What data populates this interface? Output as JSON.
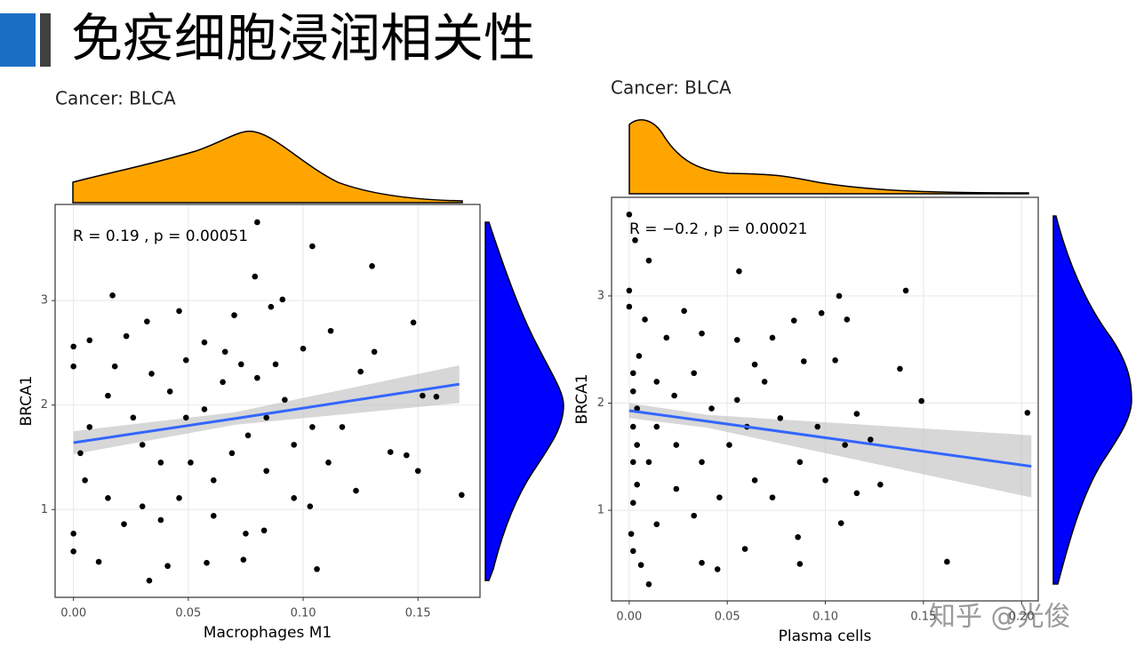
{
  "header": {
    "title": "免疫细胞浸润相关性"
  },
  "watermark": "知乎 @光俊",
  "chart_data": [
    {
      "type": "scatter",
      "title": "Cancer: BLCA",
      "annotation": "R = 0.19 , p = 0.00051",
      "x_label": "Macrophages M1",
      "y_label": "BRCA1",
      "color": "#000000",
      "xlim": [
        -0.008,
        0.177
      ],
      "ylim": [
        0.16,
        3.92
      ],
      "xticks": [
        {
          "value": 0,
          "label": "0.00"
        },
        0.05,
        {
          "value": 0.1,
          "label": "0.10"
        },
        0.15
      ],
      "yticks": [
        1,
        2,
        3
      ],
      "grid": true,
      "x": [
        0.08,
        0.104,
        0.13,
        0.079,
        0.017,
        0.091,
        0.148,
        0.169,
        0.15,
        0.106,
        0.033,
        0,
        0,
        0,
        0,
        0.007,
        0.011,
        0.041,
        0.058,
        0.074,
        0.083,
        0.103,
        0.123,
        0.138,
        0.145,
        0.158,
        0.152,
        0.125,
        0.131,
        0.112,
        0.1,
        0.086,
        0.07,
        0.057,
        0.046,
        0.032,
        0.023,
        0.018,
        0.015,
        0.007,
        0.003,
        0.005,
        0.015,
        0.022,
        0.03,
        0.038,
        0.046,
        0.051,
        0.061,
        0.069,
        0.076,
        0.084,
        0.092,
        0.096,
        0.104,
        0.111,
        0.117,
        0.065,
        0.073,
        0.057,
        0.049,
        0.042,
        0.034,
        0.026,
        0.03,
        0.038,
        0.061,
        0.075,
        0.096,
        0.084,
        0.049,
        0.08,
        0.088,
        0.066
      ],
      "values": [
        3.75,
        3.52,
        3.33,
        3.23,
        3.05,
        3.01,
        2.79,
        1.14,
        1.37,
        0.43,
        0.32,
        0.77,
        0.6,
        2.56,
        2.37,
        2.62,
        0.5,
        0.46,
        0.49,
        0.52,
        0.8,
        1.03,
        1.18,
        1.55,
        1.52,
        2.08,
        2.09,
        2.32,
        2.51,
        2.71,
        2.54,
        2.94,
        2.86,
        2.6,
        2.9,
        2.8,
        2.66,
        2.37,
        2.09,
        1.79,
        1.54,
        1.28,
        1.11,
        0.86,
        1.03,
        0.9,
        1.11,
        1.45,
        1.28,
        1.54,
        1.71,
        1.88,
        2.05,
        1.62,
        1.79,
        1.45,
        1.79,
        2.22,
        2.39,
        1.96,
        1.88,
        2.13,
        2.3,
        1.88,
        1.62,
        1.45,
        0.94,
        0.77,
        1.11,
        1.37,
        2.43,
        2.26,
        2.39,
        2.51
      ],
      "fit": {
        "color": "#3366ff",
        "band_color": "#bdbdbd",
        "x": [
          0,
          0.07,
          0.168
        ],
        "values": [
          1.64,
          1.87,
          2.2
        ],
        "lower": [
          1.53,
          1.81,
          2.02
        ],
        "upper": [
          1.75,
          1.93,
          2.38
        ]
      }
    },
    {
      "type": "scatter",
      "title": "Cancer: BLCA",
      "annotation": "R = −0.2 , p = 0.00021",
      "x_label": "Plasma cells",
      "y_label": "BRCA1",
      "color": "#000000",
      "xlim": [
        -0.009,
        0.2085
      ],
      "ylim": [
        0.155,
        3.92
      ],
      "xticks": [
        {
          "value": 0,
          "label": "0.00"
        },
        0.05,
        {
          "value": 0.1,
          "label": "0.10"
        },
        0.15,
        {
          "value": 0.2,
          "label": "0.20"
        }
      ],
      "yticks": [
        1,
        2,
        3
      ],
      "grid": true,
      "x": [
        0,
        0.003,
        0.01,
        0.056,
        0,
        0,
        0.107,
        0.141,
        0.098,
        0.084,
        0.111,
        0.203,
        0.162,
        0.149,
        0.138,
        0.001,
        0.002,
        0.01,
        0.006,
        0.045,
        0.037,
        0.059,
        0.087,
        0.086,
        0.108,
        0.116,
        0.128,
        0.123,
        0.116,
        0.105,
        0.089,
        0.073,
        0.055,
        0.037,
        0.028,
        0.019,
        0.005,
        0.002,
        0.002,
        0.004,
        0.002,
        0.004,
        0.002,
        0.004,
        0.002,
        0.01,
        0.014,
        0.023,
        0.033,
        0.042,
        0.051,
        0.06,
        0.069,
        0.077,
        0.087,
        0.096,
        0.064,
        0.046,
        0.033,
        0.024,
        0.014,
        0.073,
        0.1,
        0.11,
        0.037,
        0.024,
        0.055,
        0.014,
        0.008,
        0.064
      ],
      "values": [
        3.76,
        3.52,
        3.33,
        3.23,
        3.05,
        2.9,
        3.0,
        3.05,
        2.84,
        2.77,
        2.78,
        1.91,
        0.52,
        2.02,
        2.32,
        0.78,
        0.62,
        0.31,
        0.49,
        0.45,
        0.51,
        0.64,
        0.5,
        0.75,
        0.88,
        1.16,
        1.24,
        1.66,
        1.9,
        2.4,
        2.39,
        2.61,
        2.59,
        2.65,
        2.86,
        2.61,
        2.44,
        2.28,
        2.11,
        1.95,
        1.78,
        1.61,
        1.45,
        1.24,
        1.07,
        1.45,
        1.78,
        2.07,
        2.28,
        1.95,
        1.61,
        1.78,
        2.2,
        1.86,
        1.45,
        1.78,
        1.28,
        1.12,
        0.95,
        1.2,
        0.87,
        1.12,
        1.28,
        1.61,
        1.45,
        1.61,
        2.03,
        2.2,
        2.78,
        2.36
      ],
      "fit": {
        "color": "#3366ff",
        "band_color": "#bdbdbd",
        "x": [
          0,
          0.04,
          0.205
        ],
        "values": [
          1.93,
          1.83,
          1.41
        ],
        "lower": [
          1.86,
          1.77,
          1.12
        ],
        "upper": [
          2.0,
          1.89,
          1.7
        ]
      }
    }
  ]
}
